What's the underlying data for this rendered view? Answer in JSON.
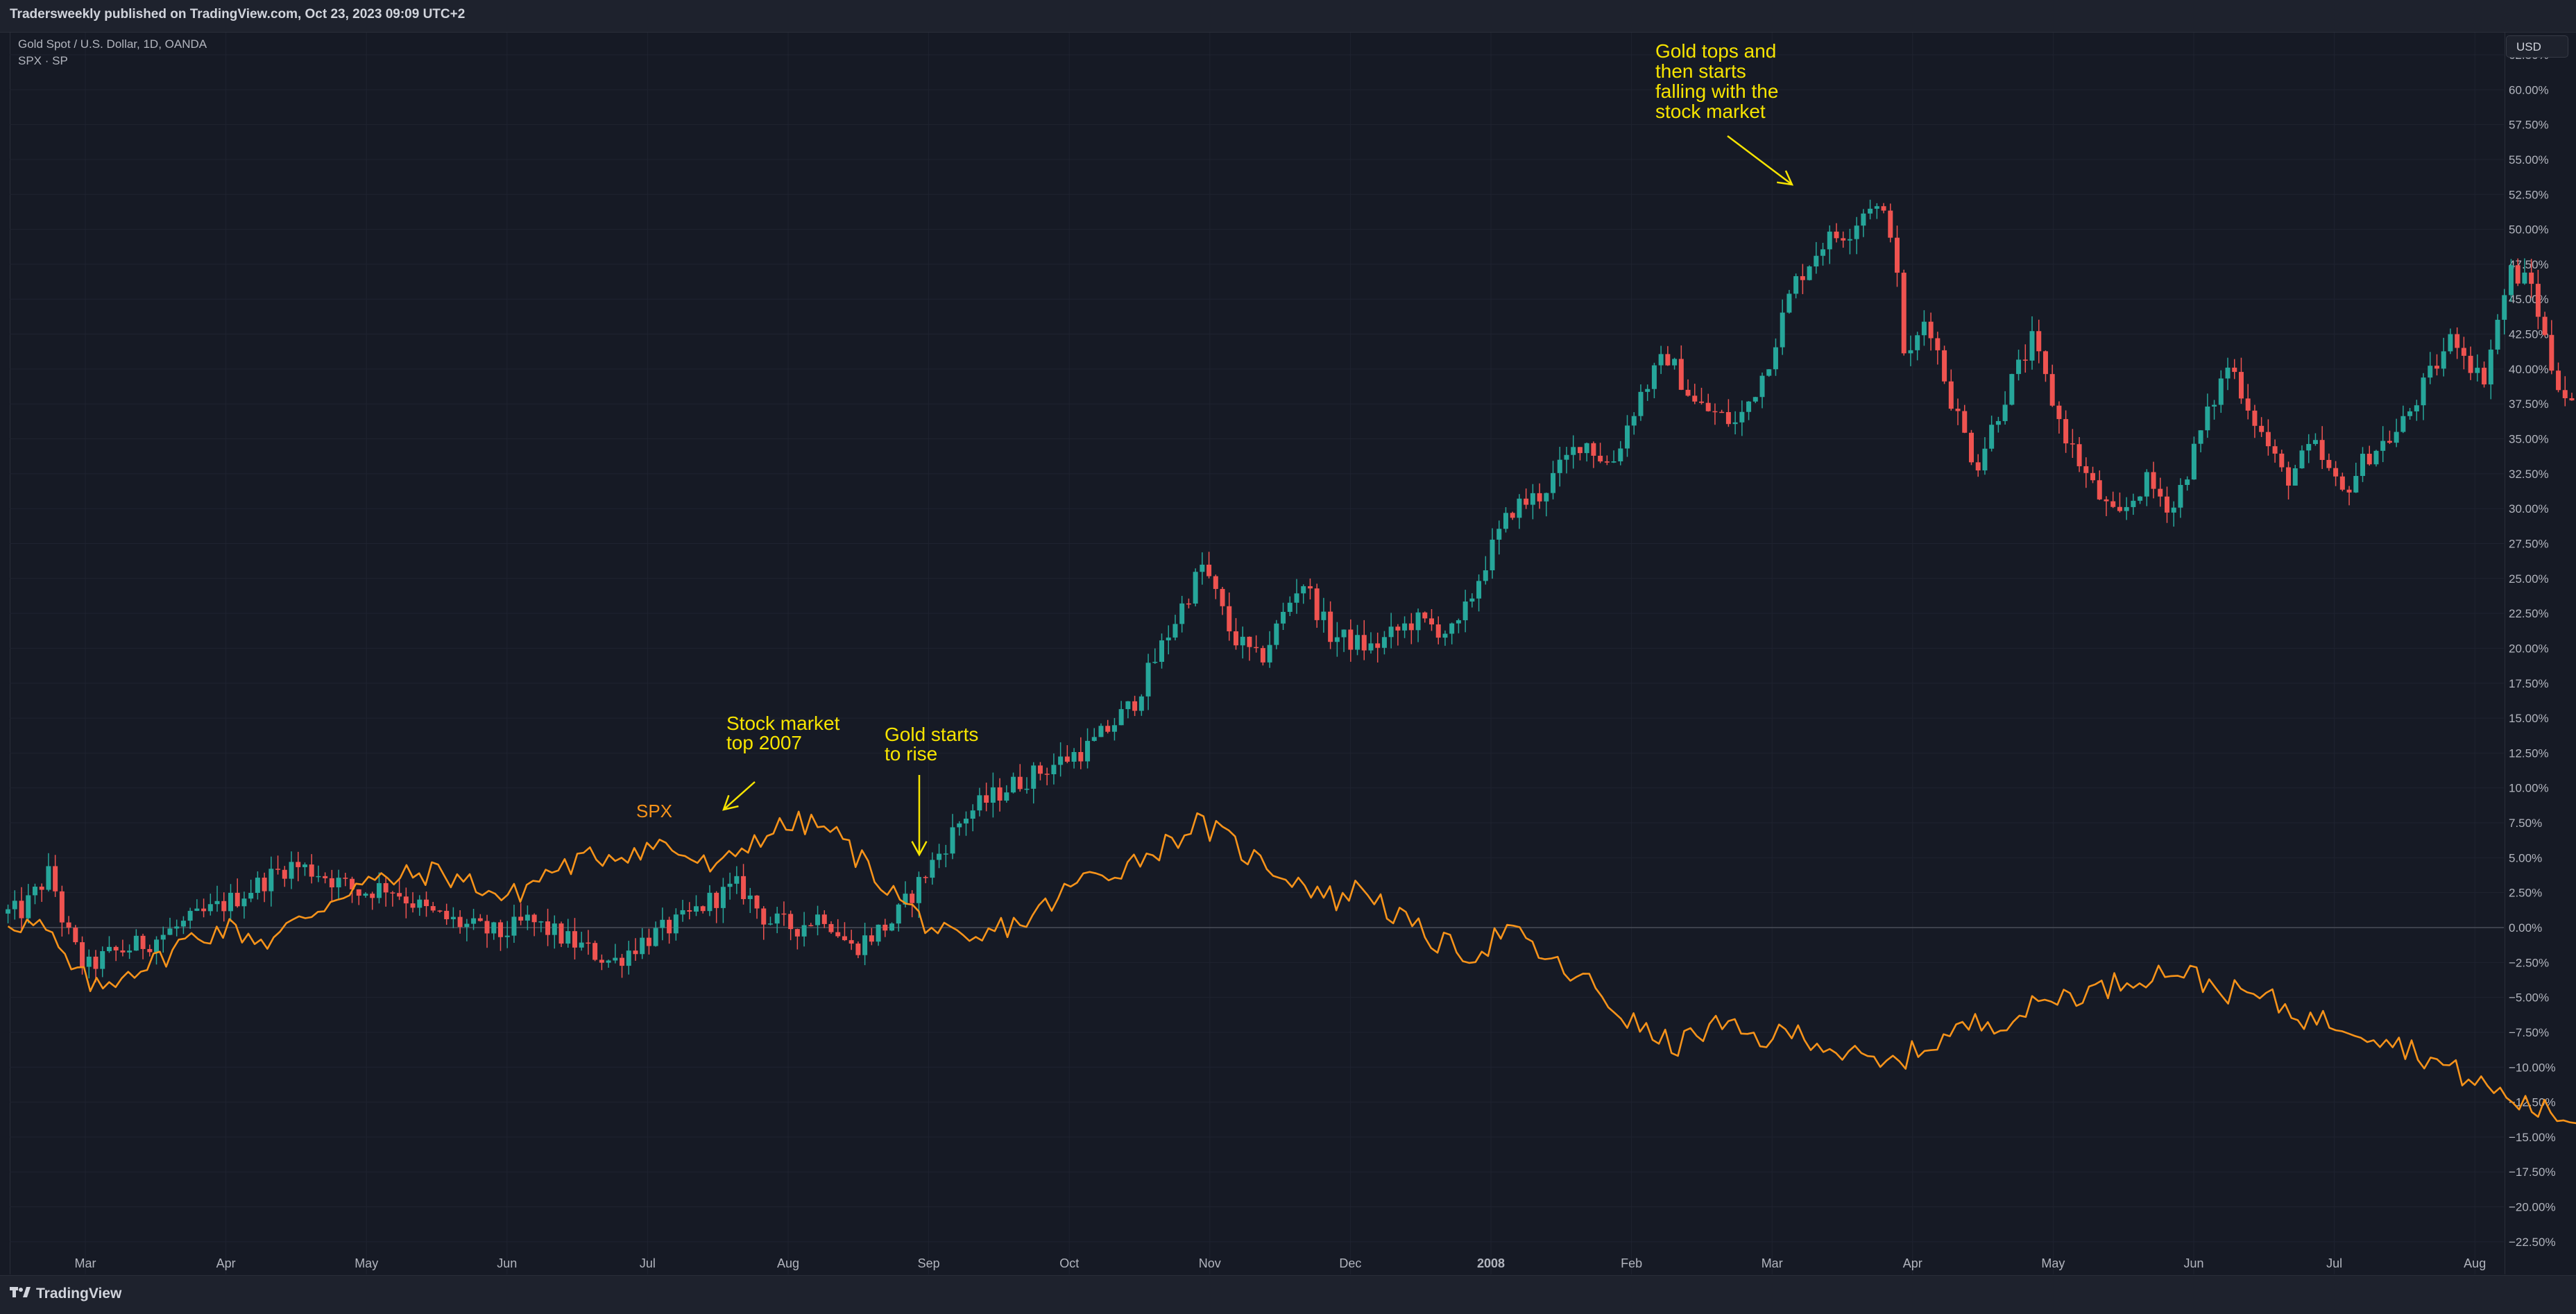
{
  "header": {
    "publish_text": "Tradersweekly published on TradingView.com, Oct 23, 2023 09:09 UTC+2"
  },
  "legend": {
    "symbol_line": "Gold Spot / U.S. Dollar, 1D, OANDA",
    "compare_line": "SPX · SP"
  },
  "currency_button": "USD",
  "footer": {
    "brand": "TradingView"
  },
  "colors": {
    "background": "#161a25",
    "up": "#26a69a",
    "down": "#ef5350",
    "spx": "#f7931a",
    "annotation": "#f7e400",
    "axis_text": "#b2b5be"
  },
  "chart_data": {
    "type": "candlestick-with-line",
    "title": "",
    "ylabel": "",
    "y_unit": "percent change",
    "ylim": [
      -23.5,
      62.5
    ],
    "y_ticks": [
      "62.50%",
      "60.00%",
      "57.50%",
      "55.00%",
      "52.50%",
      "50.00%",
      "47.50%",
      "45.00%",
      "42.50%",
      "40.00%",
      "37.50%",
      "35.00%",
      "32.50%",
      "30.00%",
      "27.50%",
      "25.00%",
      "22.50%",
      "20.00%",
      "17.50%",
      "15.00%",
      "12.50%",
      "10.00%",
      "7.50%",
      "5.00%",
      "2.50%",
      "0.00%",
      "−2.50%",
      "−5.00%",
      "−7.50%",
      "−10.00%",
      "−12.50%",
      "−15.00%",
      "−17.50%",
      "−20.00%",
      "−22.50%"
    ],
    "x_ticks": [
      "Mar",
      "Apr",
      "May",
      "Jun",
      "Jul",
      "Aug",
      "Sep",
      "Oct",
      "Nov",
      "Dec",
      "2008",
      "Feb",
      "Mar",
      "Apr",
      "May",
      "Jun",
      "Jul",
      "Aug"
    ],
    "x_tick_months": [
      1,
      2,
      3,
      4,
      5,
      6,
      7,
      8,
      9,
      10,
      11,
      12,
      13,
      14,
      15,
      16,
      17,
      18
    ],
    "x_range_months": [
      0.45,
      18.7
    ],
    "series": [
      {
        "name": "Gold Spot / U.S. Dollar",
        "type": "candlestick",
        "anchors": [
          [
            0.45,
            1.0
          ],
          [
            0.6,
            1.2
          ],
          [
            0.8,
            4.0
          ],
          [
            0.9,
            0.0
          ],
          [
            1.05,
            -3.0
          ],
          [
            1.2,
            -2.0
          ],
          [
            1.5,
            -1.0
          ],
          [
            1.8,
            0.5
          ],
          [
            2.1,
            2.0
          ],
          [
            2.5,
            4.5
          ],
          [
            2.7,
            4.0
          ],
          [
            3.0,
            2.5
          ],
          [
            3.2,
            3.0
          ],
          [
            3.5,
            1.0
          ],
          [
            3.8,
            0.0
          ],
          [
            4.0,
            -0.5
          ],
          [
            4.2,
            0.5
          ],
          [
            4.5,
            -1.0
          ],
          [
            4.8,
            -2.5
          ],
          [
            5.0,
            -1.0
          ],
          [
            5.3,
            0.5
          ],
          [
            5.5,
            2.0
          ],
          [
            5.7,
            3.0
          ],
          [
            5.9,
            0.5
          ],
          [
            6.1,
            0.0
          ],
          [
            6.3,
            1.0
          ],
          [
            6.5,
            -1.5
          ],
          [
            6.8,
            0.5
          ],
          [
            7.0,
            3.5
          ],
          [
            7.3,
            8.0
          ],
          [
            7.6,
            10.0
          ],
          [
            7.9,
            11.5
          ],
          [
            8.2,
            13.0
          ],
          [
            8.5,
            16.0
          ],
          [
            8.8,
            22.0
          ],
          [
            9.0,
            26.0
          ],
          [
            9.2,
            21.0
          ],
          [
            9.4,
            19.0
          ],
          [
            9.7,
            25.0
          ],
          [
            9.9,
            21.0
          ],
          [
            10.2,
            20.0
          ],
          [
            10.5,
            22.0
          ],
          [
            10.8,
            21.0
          ],
          [
            11.0,
            26.0
          ],
          [
            11.2,
            30.0
          ],
          [
            11.4,
            31.0
          ],
          [
            11.7,
            35.0
          ],
          [
            11.9,
            33.0
          ],
          [
            12.1,
            38.0
          ],
          [
            12.3,
            41.0
          ],
          [
            12.5,
            37.5
          ],
          [
            12.8,
            36.0
          ],
          [
            13.0,
            40.0
          ],
          [
            13.2,
            46.0
          ],
          [
            13.4,
            49.0
          ],
          [
            13.6,
            50.0
          ],
          [
            13.75,
            52.0
          ],
          [
            13.9,
            50.0
          ],
          [
            14.0,
            40.0
          ],
          [
            14.15,
            44.0
          ],
          [
            14.3,
            38.5
          ],
          [
            14.5,
            33.0
          ],
          [
            14.7,
            38.0
          ],
          [
            14.9,
            42.0
          ],
          [
            15.1,
            36.0
          ],
          [
            15.3,
            32.0
          ],
          [
            15.5,
            29.0
          ],
          [
            15.7,
            32.0
          ],
          [
            15.9,
            30.0
          ],
          [
            16.1,
            35.5
          ],
          [
            16.3,
            40.5
          ],
          [
            16.5,
            36.0
          ],
          [
            16.7,
            32.0
          ],
          [
            16.9,
            34.5
          ],
          [
            17.1,
            31.0
          ],
          [
            17.3,
            34.0
          ],
          [
            17.5,
            35.5
          ],
          [
            17.7,
            39.0
          ],
          [
            17.9,
            42.5
          ],
          [
            18.1,
            39.0
          ],
          [
            18.3,
            47.0
          ],
          [
            18.45,
            46.0
          ],
          [
            18.6,
            40.0
          ],
          [
            18.75,
            37.0
          ],
          [
            18.9,
            33.0
          ],
          [
            19.05,
            28.0
          ],
          [
            19.15,
            22.0
          ],
          [
            19.3,
            20.0
          ]
        ]
      },
      {
        "name": "SPX",
        "type": "line",
        "anchors": [
          [
            0.45,
            0.5
          ],
          [
            0.7,
            0.0
          ],
          [
            0.9,
            -3.0
          ],
          [
            1.1,
            -4.5
          ],
          [
            1.3,
            -3.0
          ],
          [
            1.5,
            -2.5
          ],
          [
            1.7,
            -1.0
          ],
          [
            2.0,
            0.0
          ],
          [
            2.3,
            -1.0
          ],
          [
            2.6,
            1.0
          ],
          [
            2.9,
            3.0
          ],
          [
            3.2,
            3.5
          ],
          [
            3.5,
            4.0
          ],
          [
            3.8,
            3.0
          ],
          [
            4.0,
            2.0
          ],
          [
            4.3,
            4.0
          ],
          [
            4.6,
            5.0
          ],
          [
            4.9,
            5.5
          ],
          [
            5.1,
            6.0
          ],
          [
            5.3,
            5.0
          ],
          [
            5.5,
            4.0
          ],
          [
            5.7,
            6.0
          ],
          [
            5.9,
            7.0
          ],
          [
            6.1,
            7.5
          ],
          [
            6.3,
            7.0
          ],
          [
            6.5,
            5.0
          ],
          [
            6.7,
            3.0
          ],
          [
            6.9,
            1.0
          ],
          [
            7.1,
            -0.5
          ],
          [
            7.3,
            -1.5
          ],
          [
            7.5,
            0.0
          ],
          [
            7.7,
            0.5
          ],
          [
            7.9,
            2.0
          ],
          [
            8.1,
            3.5
          ],
          [
            8.3,
            4.0
          ],
          [
            8.5,
            5.0
          ],
          [
            8.7,
            6.0
          ],
          [
            8.9,
            7.5
          ],
          [
            9.1,
            6.5
          ],
          [
            9.3,
            5.0
          ],
          [
            9.5,
            4.0
          ],
          [
            9.7,
            3.0
          ],
          [
            9.9,
            2.0
          ],
          [
            10.1,
            3.0
          ],
          [
            10.3,
            1.0
          ],
          [
            10.6,
            -1.0
          ],
          [
            10.9,
            -2.0
          ],
          [
            11.1,
            0.0
          ],
          [
            11.3,
            -1.5
          ],
          [
            11.5,
            -3.0
          ],
          [
            11.7,
            -4.0
          ],
          [
            11.9,
            -6.0
          ],
          [
            12.1,
            -7.5
          ],
          [
            12.3,
            -8.5
          ],
          [
            12.6,
            -7.0
          ],
          [
            12.9,
            -8.0
          ],
          [
            13.2,
            -7.5
          ],
          [
            13.5,
            -9.0
          ],
          [
            13.8,
            -10.0
          ],
          [
            14.1,
            -8.5
          ],
          [
            14.4,
            -7.0
          ],
          [
            14.7,
            -6.5
          ],
          [
            15.0,
            -5.0
          ],
          [
            15.3,
            -4.5
          ],
          [
            15.6,
            -3.5
          ],
          [
            15.9,
            -3.0
          ],
          [
            16.2,
            -4.5
          ],
          [
            16.5,
            -5.0
          ],
          [
            16.8,
            -6.5
          ],
          [
            17.1,
            -7.0
          ],
          [
            17.4,
            -8.0
          ],
          [
            17.7,
            -9.5
          ],
          [
            18.0,
            -11.0
          ],
          [
            18.3,
            -12.5
          ],
          [
            18.6,
            -13.5
          ],
          [
            18.9,
            -14.5
          ],
          [
            19.1,
            -13.0
          ],
          [
            19.3,
            -12.5
          ],
          [
            19.5,
            -13.0
          ],
          [
            19.7,
            -12.0
          ],
          [
            19.9,
            -11.0
          ],
          [
            20.1,
            -12.5
          ]
        ]
      }
    ],
    "annotations": [
      {
        "text": [
          "SPX"
        ],
        "color": "#f7931a"
      },
      {
        "text": [
          "Stock market",
          "top 2007"
        ],
        "color": "#f7e400"
      },
      {
        "text": [
          "Gold starts",
          "to rise"
        ],
        "color": "#f7e400"
      },
      {
        "text": [
          "Gold tops and",
          "then starts",
          "falling with the",
          "stock market"
        ],
        "color": "#f7e400"
      }
    ]
  }
}
